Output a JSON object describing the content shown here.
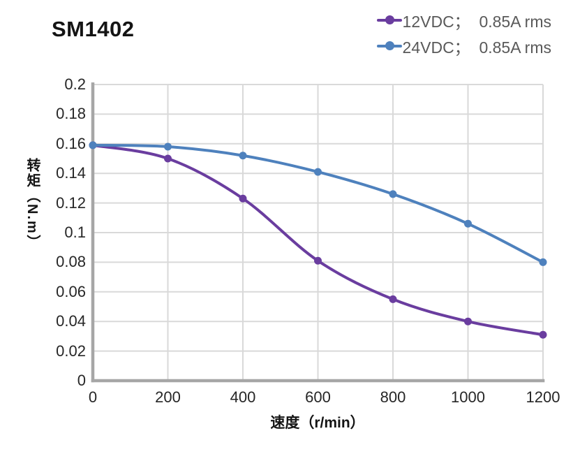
{
  "title": "SM1402",
  "chart_data": {
    "type": "line",
    "title": "SM1402",
    "x": [
      0,
      200,
      400,
      600,
      800,
      1000,
      1200
    ],
    "series": [
      {
        "name": "12VDC；  0.85A rms",
        "color": "#6A3D9F",
        "values": [
          0.159,
          0.15,
          0.123,
          0.081,
          0.055,
          0.04,
          0.031
        ]
      },
      {
        "name": "24VDC；  0.85A rms",
        "color": "#4E81BD",
        "values": [
          0.159,
          0.158,
          0.152,
          0.141,
          0.126,
          0.106,
          0.08
        ]
      }
    ],
    "xlabel": "速度（r/min）",
    "ylabel": "转矩（N.m）",
    "xlim": [
      0,
      1200
    ],
    "ylim": [
      0,
      0.2
    ],
    "x_ticks": [
      "0",
      "200",
      "400",
      "600",
      "800",
      "1000",
      "1200"
    ],
    "y_ticks": [
      "0",
      "0.02",
      "0.04",
      "0.06",
      "0.08",
      "0.1",
      "0.12",
      "0.14",
      "0.16",
      "0.18",
      "0.2"
    ],
    "grid": true,
    "legend_position": "top-right",
    "marker": "circle",
    "colors": {
      "gridline": "#D9D9D9",
      "axis": "#A6A6A6",
      "tick_text": "#262626",
      "legend_text": "#595959",
      "title_text": "#141414"
    }
  }
}
